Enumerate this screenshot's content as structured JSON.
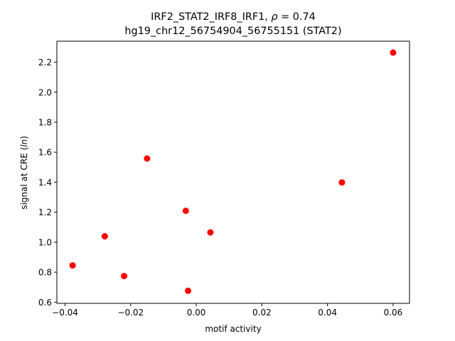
{
  "chart_data": {
    "type": "scatter",
    "title_line1_prefix": "IRF2_STAT2_IRF8_IRF1, ",
    "title_line1_rho": "ρ",
    "title_line1_suffix": " = 0.74",
    "title_line2": "hg19_chr12_56754904_56755151 (STAT2)",
    "xlabel": "motif activity",
    "ylabel_prefix": "signal at CRE (",
    "ylabel_italic": "ln",
    "ylabel_suffix": ")",
    "xlim": [
      -0.0425,
      0.065
    ],
    "ylim": [
      0.592,
      2.34
    ],
    "xticks": [
      -0.04,
      -0.02,
      0.0,
      0.02,
      0.04,
      0.06
    ],
    "xtick_labels": [
      "−0.04",
      "−0.02",
      "0.00",
      "0.02",
      "0.04",
      "0.06"
    ],
    "yticks": [
      0.6,
      0.8,
      1.0,
      1.2,
      1.4,
      1.6,
      1.8,
      2.0,
      2.2
    ],
    "ytick_labels": [
      "0.6",
      "0.8",
      "1.0",
      "1.2",
      "1.4",
      "1.6",
      "1.8",
      "2.0",
      "2.2"
    ],
    "grid": false,
    "marker_color": "#ff0000",
    "points": [
      {
        "x": -0.0377,
        "y": 0.845
      },
      {
        "x": -0.0279,
        "y": 1.039
      },
      {
        "x": -0.022,
        "y": 0.774
      },
      {
        "x": -0.015,
        "y": 1.558
      },
      {
        "x": -0.0032,
        "y": 1.209
      },
      {
        "x": -0.0025,
        "y": 0.676
      },
      {
        "x": 0.0043,
        "y": 1.065
      },
      {
        "x": 0.0444,
        "y": 1.398
      },
      {
        "x": 0.06,
        "y": 2.264
      }
    ]
  }
}
